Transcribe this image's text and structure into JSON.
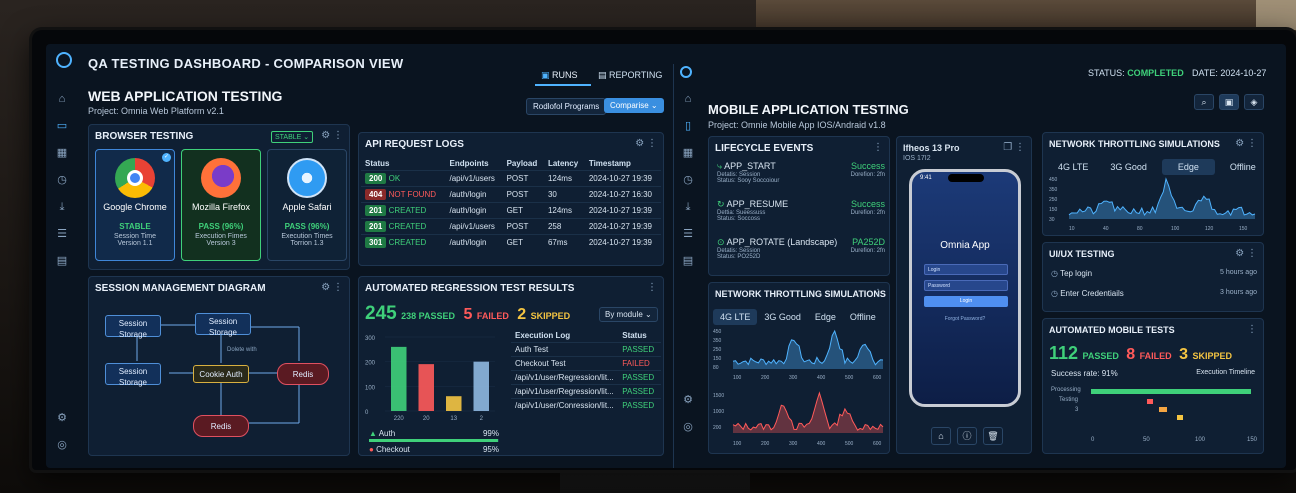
{
  "header": {
    "title": "QA TESTING DASHBOARD - COMPARISON VIEW",
    "runs": "RUNS",
    "reporting": "REPORTING",
    "status_label": "STATUS:",
    "status_value": "COMPLETED",
    "date": "DATE: 2024-10-27"
  },
  "web": {
    "title": "WEB APPLICATION TESTING",
    "project": "Project: Omnia Web Platform v2.1",
    "btn_programs": "Rodlofol Programs",
    "btn_compare": "Comparise",
    "browser_panel": {
      "title": "BROWSER TESTING",
      "badge": "STABLE",
      "cards": [
        {
          "name": "Google Chrome",
          "status": "STABLE",
          "l1": "Session Time",
          "l2": "Version 1.1"
        },
        {
          "name": "Mozilla Firefox",
          "status": "PASS (96%)",
          "l1": "Execution Fimes",
          "l2": "Version 3"
        },
        {
          "name": "Apple Safari",
          "status": "PASS (96%)",
          "l1": "Execution Times",
          "l2": "Torrion 1.3"
        }
      ]
    },
    "api_panel": {
      "title": "API REQUEST LOGS",
      "headers": [
        "Status",
        "Endpoints",
        "Payload",
        "Latency",
        "Timestamp"
      ],
      "rows": [
        {
          "code": "200",
          "label": "OK",
          "ep": "/api/v1/users",
          "method": "POST",
          "lat": "124ms",
          "ts": "2024-10-27 19:39"
        },
        {
          "code": "404",
          "label": "NOT FOUND",
          "ep": "/auth/login",
          "method": "POST",
          "lat": "30",
          "ts": "2024-10-27 16:30"
        },
        {
          "code": "201",
          "label": "CREATED",
          "ep": "/auth/login",
          "method": "GET",
          "lat": "124ms",
          "ts": "2024-10-27 19:39"
        },
        {
          "code": "201",
          "label": "CREATED",
          "ep": "/api/v1/users",
          "method": "POST",
          "lat": "258",
          "ts": "2024-10-27 19:39"
        },
        {
          "code": "301",
          "label": "CREATED",
          "ep": "/auth/login",
          "method": "GET",
          "lat": "67ms",
          "ts": "2024-10-27 19:39"
        }
      ]
    },
    "session_panel": {
      "title": "SESSION MANAGEMENT DIAGRAM",
      "nodes": [
        "Session Storage",
        "Session Storage",
        "Session Storage",
        "Cookie Auth",
        "Redis",
        "Redis"
      ],
      "note": "Dolete with"
    },
    "regression_panel": {
      "title": "AUTOMATED REGRESSION TEST RESULTS",
      "total": "245",
      "passed": "238 PASSED",
      "failed_n": "5",
      "failed": "FAILED",
      "skipped_n": "2",
      "skipped": "SKIPPED",
      "dropdown": "By module",
      "log_headers": [
        "Execution Log",
        "Status"
      ],
      "logs": [
        {
          "name": "Auth Test",
          "status": "PASSED"
        },
        {
          "name": "Checkout Test",
          "status": "FAILED"
        },
        {
          "name": "/api/v1/user/Regression/lit...",
          "status": "PASSED"
        },
        {
          "name": "/api/v1/user/Regression/lit...",
          "status": "PASSED"
        },
        {
          "name": "/api/v1/user/Conression/lit...",
          "status": "PASSED"
        }
      ],
      "modules": [
        {
          "name": "Auth",
          "pct": "99%"
        },
        {
          "name": "Checkout",
          "pct": "95%"
        }
      ]
    }
  },
  "mobile": {
    "title": "MOBILE APPLICATION TESTING",
    "project": "Project: Omnie Mobile App IOS/Andraid v1.8",
    "lifecycle": {
      "title": "LIFECYCLE EVENTS",
      "events": [
        {
          "name": "APP_START",
          "d1": "Detatis: Session",
          "d2": "Status: Sooy Soccoiour",
          "res": "Success",
          "dur": "Dorefion: 2fn"
        },
        {
          "name": "APP_RESUME",
          "d1": "Dettia: Sueessuss",
          "d2": "Status: Soccoss",
          "res": "Success",
          "dur": "Durefion: 2fn"
        },
        {
          "name": "APP_ROTATE (Landscape)",
          "d1": "Detatis: Session",
          "d2": "Status: PO252D",
          "res": "PA252D",
          "dur": "Durefion: 2fn"
        }
      ]
    },
    "device": {
      "name": "Ifheos 13 Pro",
      "os": "IOS 17I2",
      "app": "Omnia App",
      "login": "Login",
      "password": "Password",
      "login_btn": "Login",
      "forgot": "Forgot Password?"
    },
    "throttle_small": {
      "title": "NETWORK THROTTLING SIMULATIONS",
      "tabs": [
        "4G LTE",
        "3G Good",
        "Edge",
        "Offline"
      ],
      "selected": "4G LTE"
    },
    "throttle_right": {
      "title": "NETWORK THROTTLING SIMULATIONS",
      "tabs": [
        "4G LTE",
        "3G Good",
        "Edge",
        "Offline"
      ],
      "selected": "Edge"
    },
    "ux": {
      "title": "UI/UX TESTING",
      "items": [
        {
          "label": "Tep login",
          "time": "5 hours ago"
        },
        {
          "label": "Enter Credentiails",
          "time": "3 hours ago"
        }
      ]
    },
    "auto": {
      "title": "AUTOMATED MOBILE TESTS",
      "passed_n": "112",
      "passed": "PASSED",
      "failed_n": "8",
      "failed": "FAILED",
      "skipped_n": "3",
      "skipped": "SKIPPED",
      "rate": "Success rate: 91%",
      "timeline": "Execution Timeline",
      "rows": [
        "Processing",
        "Testing",
        "3"
      ]
    }
  },
  "chart_data": [
    {
      "type": "bar",
      "categories": [
        "220",
        "20",
        "13",
        "2"
      ],
      "values": [
        260,
        190,
        60,
        200
      ],
      "ylim": [
        0,
        300
      ],
      "yticks": [
        "300",
        "200",
        "100",
        "0"
      ],
      "series_colors": [
        "#3fd07a",
        "#ff5a5a",
        "#f5c542",
        "#8fb8e0"
      ]
    },
    {
      "type": "line",
      "x_ticks": [
        "100",
        "200",
        "300",
        "400",
        "500",
        "600"
      ],
      "top_series": {
        "yticks": [
          "450",
          "350",
          "250",
          "150",
          "80"
        ]
      },
      "bottom_series": {
        "yticks": [
          "1500",
          "1000",
          "200"
        ]
      }
    },
    {
      "type": "line",
      "x_ticks": [
        "10",
        "40",
        "80",
        "100",
        "120",
        "150"
      ],
      "yticks": [
        "450",
        "350",
        "250",
        "150",
        "30"
      ]
    },
    {
      "type": "bar",
      "x_ticks": [
        "0",
        "50",
        "100",
        "150"
      ]
    }
  ]
}
